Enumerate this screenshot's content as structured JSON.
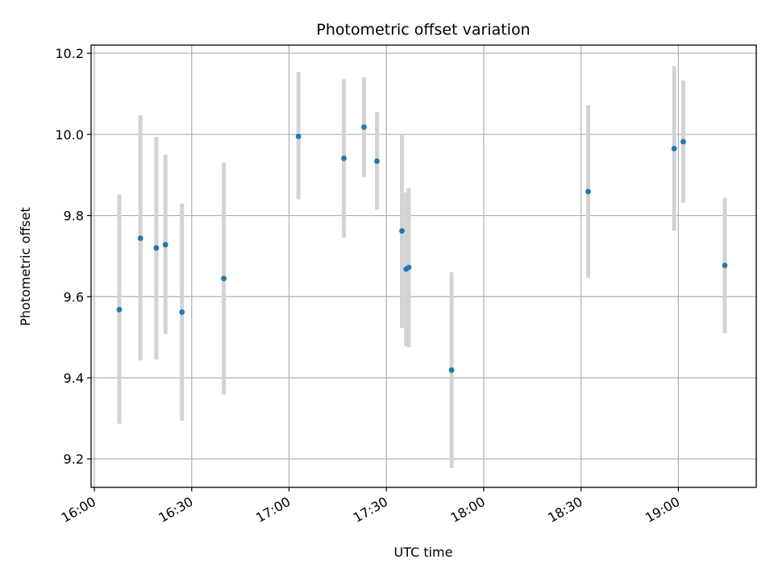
{
  "chart_data": {
    "type": "scatter",
    "title": "Photometric offset variation",
    "xlabel": "UTC time",
    "ylabel": "Photometric offset",
    "x_unit": "minutes after 16:00 UTC",
    "xlim": [
      -1,
      204
    ],
    "ylim": [
      9.13,
      10.22
    ],
    "x_ticks": [
      {
        "value": 0,
        "label": "16:00"
      },
      {
        "value": 30,
        "label": "16:30"
      },
      {
        "value": 60,
        "label": "17:00"
      },
      {
        "value": 90,
        "label": "17:30"
      },
      {
        "value": 120,
        "label": "18:00"
      },
      {
        "value": 150,
        "label": "18:30"
      },
      {
        "value": 180,
        "label": "19:00"
      }
    ],
    "y_ticks": [
      {
        "value": 9.2,
        "label": "9.2"
      },
      {
        "value": 9.4,
        "label": "9.4"
      },
      {
        "value": 9.6,
        "label": "9.6"
      },
      {
        "value": 9.8,
        "label": "9.8"
      },
      {
        "value": 10.0,
        "label": "10.0"
      },
      {
        "value": 10.2,
        "label": "10.2"
      }
    ],
    "grid": true,
    "point_color": "#1f77b4",
    "errorbar_color": "#d3d3d3",
    "series": [
      {
        "points": [
          {
            "x": 7.7,
            "y": 9.568,
            "low": 9.287,
            "high": 9.852
          },
          {
            "x": 14.2,
            "y": 9.744,
            "low": 9.443,
            "high": 10.047
          },
          {
            "x": 19.1,
            "y": 9.72,
            "low": 9.445,
            "high": 9.994
          },
          {
            "x": 21.9,
            "y": 9.728,
            "low": 9.508,
            "high": 9.95
          },
          {
            "x": 27.0,
            "y": 9.562,
            "low": 9.294,
            "high": 9.829
          },
          {
            "x": 39.9,
            "y": 9.645,
            "low": 9.359,
            "high": 9.931
          },
          {
            "x": 62.9,
            "y": 9.995,
            "low": 9.84,
            "high": 10.154
          },
          {
            "x": 76.9,
            "y": 9.941,
            "low": 9.745,
            "high": 10.136
          },
          {
            "x": 83.1,
            "y": 10.018,
            "low": 9.895,
            "high": 10.14
          },
          {
            "x": 87.1,
            "y": 9.934,
            "low": 9.815,
            "high": 10.055
          },
          {
            "x": 94.8,
            "y": 9.762,
            "low": 9.523,
            "high": 9.998
          },
          {
            "x": 96.1,
            "y": 9.668,
            "low": 9.478,
            "high": 9.857
          },
          {
            "x": 96.9,
            "y": 9.672,
            "low": 9.475,
            "high": 9.868
          },
          {
            "x": 110.1,
            "y": 9.419,
            "low": 9.178,
            "high": 9.66
          },
          {
            "x": 152.2,
            "y": 9.859,
            "low": 9.647,
            "high": 10.072
          },
          {
            "x": 178.7,
            "y": 9.965,
            "low": 9.762,
            "high": 10.168
          },
          {
            "x": 181.5,
            "y": 9.982,
            "low": 9.832,
            "high": 10.133
          },
          {
            "x": 194.3,
            "y": 9.677,
            "low": 9.51,
            "high": 9.844
          }
        ]
      }
    ]
  }
}
